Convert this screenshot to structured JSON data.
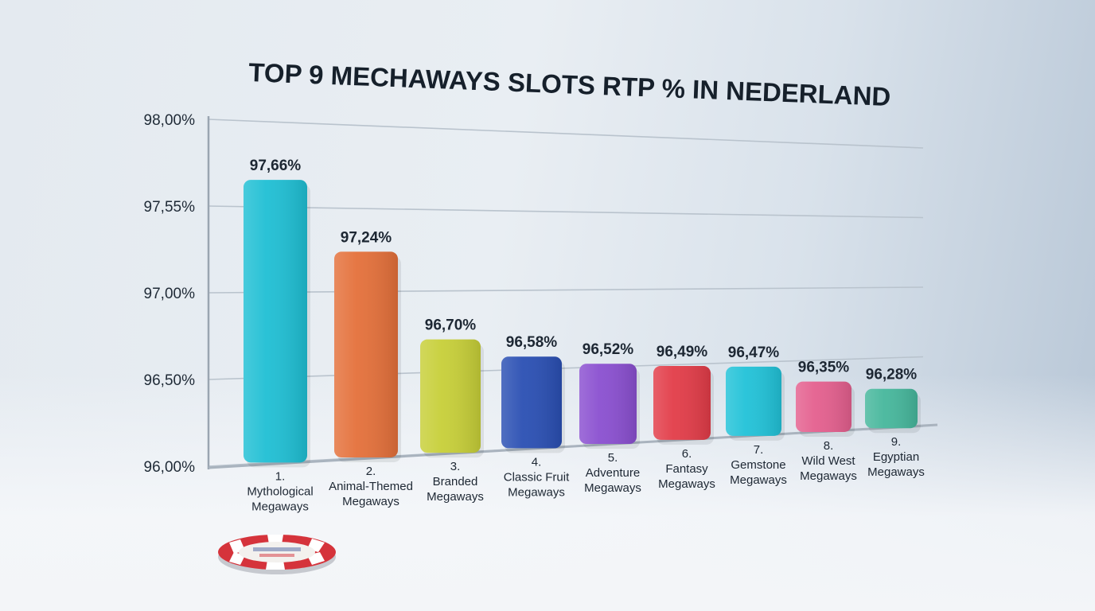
{
  "chart_data": {
    "type": "bar",
    "title": "TOP 9 MECHAWAYS SLOTS RTP % IN NEDERLAND",
    "xlabel": "",
    "ylabel": "",
    "ylim": [
      96.0,
      98.0
    ],
    "yticks": [
      "96,00%",
      "96,50%",
      "97,00%",
      "97,55%",
      "98,00%"
    ],
    "grid": true,
    "legend": "none",
    "categories": [
      [
        "1.",
        "Mythological",
        "Megaways"
      ],
      [
        "2.",
        "Animal-Themed",
        "Megaways"
      ],
      [
        "3.",
        "Branded",
        "Megaways"
      ],
      [
        "4.",
        "Classic Fruit",
        "Megaways"
      ],
      [
        "5.",
        "Adventure",
        "Megaways"
      ],
      [
        "6.",
        "Fantasy",
        "Megaways"
      ],
      [
        "7.",
        "Gemstone",
        "Megaways"
      ],
      [
        "8.",
        "Wild West",
        "Megaways"
      ],
      [
        "9.",
        "Egyptian",
        "Megaways"
      ]
    ],
    "values": [
      97.66,
      97.24,
      96.7,
      96.58,
      96.52,
      96.49,
      96.47,
      96.35,
      96.28
    ],
    "value_labels": [
      "97,66%",
      "97,24%",
      "96,70%",
      "96,58%",
      "96,52%",
      "96,49%",
      "96,47%",
      "96,35%",
      "96,28%"
    ],
    "colors": [
      "#1fbfd4",
      "#e4703a",
      "#c7cf38",
      "#2a4fb3",
      "#8a4fd0",
      "#e23c48",
      "#21c2d8",
      "#e45f8e",
      "#46b79c"
    ]
  }
}
